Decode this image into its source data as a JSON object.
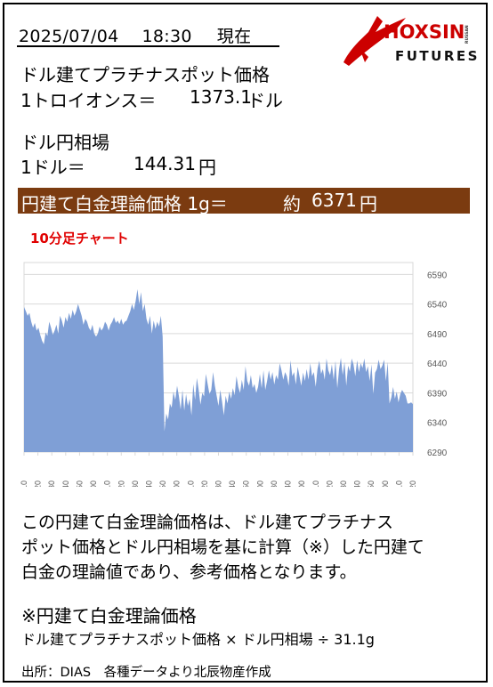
{
  "header": {
    "date": "2025/07/04",
    "time": "18:30",
    "status": "現在"
  },
  "logo": {
    "name": "HOXSIN",
    "subtext": "RUSSAN",
    "sub": "FUTURES",
    "brand_color": "#cc0000"
  },
  "usd_platinum": {
    "title": "ドル建てプラチナスポット価格",
    "unit_label": "1トロイオンス＝",
    "value": "1373.1",
    "unit": "ドル"
  },
  "fx": {
    "title": "ドル円相場",
    "unit_label": "1ドル＝",
    "value": "144.31",
    "unit": "円"
  },
  "jpy_theory": {
    "label": "円建て白金理論価格 1g＝",
    "approx": "約",
    "value": "6371",
    "unit": "円",
    "bg_color": "#7b3b10"
  },
  "chart_title": "10分足チャート",
  "chart_data": {
    "type": "area",
    "title": "10分足チャート",
    "xlabel": "",
    "ylabel": "",
    "ylim": [
      6290,
      6610
    ],
    "yticks": [
      6290,
      6340,
      6390,
      6440,
      6490,
      6540,
      6590
    ],
    "grid": true,
    "fill_color": "#7f9fd6",
    "x_tick_labels": [
      "9:10",
      "10:20",
      "11:30",
      "12:40",
      "13:50",
      "15:00",
      "16:10",
      "17:20",
      "18:30",
      "19:40",
      "20:50",
      "22:00",
      "23:10",
      "0:20",
      "1:30",
      "2:40",
      "3:50",
      "5:00",
      "6:30",
      "7:40",
      "9:00",
      "10:10",
      "11:20",
      "12:30",
      "13:40",
      "14:50",
      "16:00",
      "17:10",
      "18:20"
    ],
    "values": [
      6535,
      6528,
      6520,
      6525,
      6510,
      6500,
      6508,
      6495,
      6500,
      6488,
      6478,
      6472,
      6492,
      6486,
      6510,
      6500,
      6488,
      6495,
      6505,
      6490,
      6520,
      6512,
      6500,
      6518,
      6510,
      6525,
      6515,
      6530,
      6520,
      6528,
      6540,
      6530,
      6520,
      6505,
      6515,
      6510,
      6500,
      6495,
      6505,
      6490,
      6485,
      6490,
      6502,
      6495,
      6500,
      6510,
      6505,
      6495,
      6505,
      6510,
      6518,
      6508,
      6512,
      6506,
      6515,
      6505,
      6510,
      6512,
      6520,
      6528,
      6540,
      6530,
      6545,
      6565,
      6540,
      6560,
      6528,
      6540,
      6515,
      6505,
      6520,
      6490,
      6512,
      6498,
      6510,
      6502,
      6520,
      6485,
      6325,
      6355,
      6345,
      6372,
      6365,
      6392,
      6378,
      6402,
      6385,
      6362,
      6395,
      6360,
      6388,
      6368,
      6380,
      6352,
      6405,
      6378,
      6415,
      6395,
      6370,
      6390,
      6384,
      6422,
      6405,
      6388,
      6395,
      6425,
      6402,
      6385,
      6368,
      6395,
      6375,
      6352,
      6385,
      6372,
      6392,
      6380,
      6398,
      6386,
      6418,
      6400,
      6390,
      6412,
      6395,
      6435,
      6410,
      6402,
      6420,
      6398,
      6405,
      6390,
      6400,
      6422,
      6398,
      6428,
      6395,
      6410,
      6428,
      6412,
      6425,
      6404,
      6420,
      6412,
      6440,
      6428,
      6412,
      6425,
      6418,
      6402,
      6445,
      6418,
      6425,
      6404,
      6434,
      6418,
      6402,
      6424,
      6410,
      6430,
      6412,
      6440,
      6418,
      6425,
      6400,
      6430,
      6444,
      6422,
      6430,
      6412,
      6448,
      6428,
      6420,
      6438,
      6412,
      6444,
      6398,
      6430,
      6449,
      6420,
      6442,
      6402,
      6436,
      6426,
      6448,
      6438,
      6418,
      6445,
      6425,
      6440,
      6432,
      6448,
      6425,
      6435,
      6410,
      6438,
      6388,
      6424,
      6430,
      6446,
      6430,
      6436,
      6446,
      6410,
      6442,
      6372,
      6382,
      6400,
      6380,
      6392,
      6374,
      6388,
      6395,
      6390,
      6385,
      6372,
      6372,
      6374,
      6371
    ]
  },
  "description": {
    "line1": "この円建て白金理論価格は、ドル建てプラチナス",
    "line2": "ポット価格とドル円相場を基に計算（※）した円建て",
    "line3": "白金の理論値であり、参考価格となります。"
  },
  "formula": {
    "title": "※円建て白金理論価格",
    "text": "ドル建てプラチナスポット価格 × ドル円相場 ÷ 31.1g"
  },
  "source": "出所：DIAS　各種データより北辰物産作成"
}
